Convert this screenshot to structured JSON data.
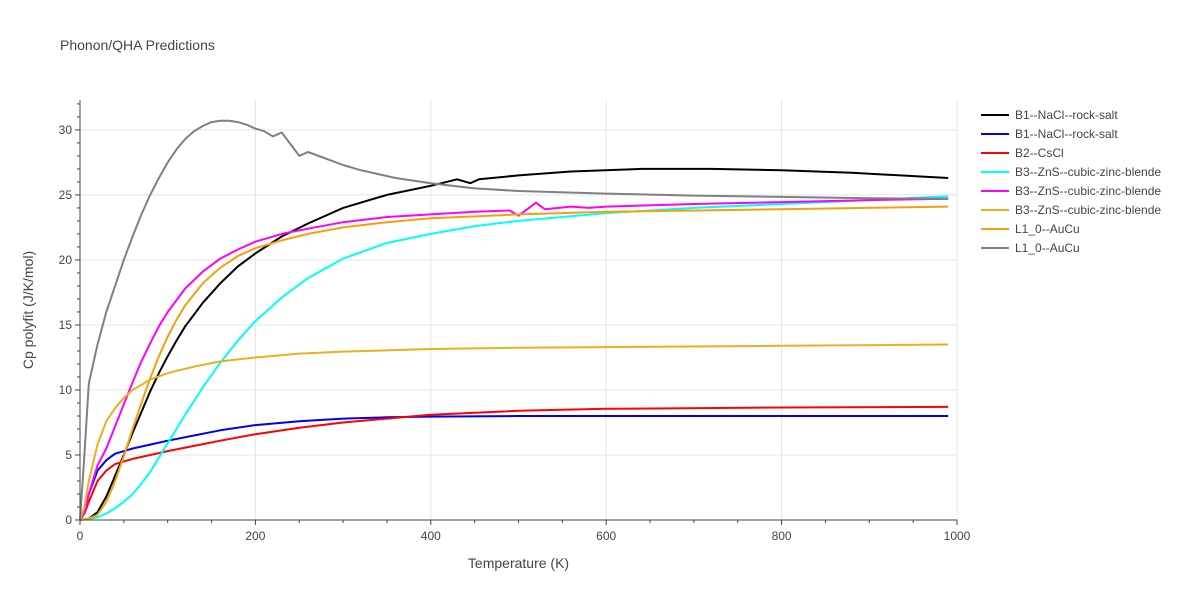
{
  "chart_data": {
    "type": "line",
    "title": "Phonon/QHA Predictions",
    "xlabel": "Temperature (K)",
    "ylabel": "Cp polyfit (J/K/mol)",
    "xlim": [
      0,
      1000
    ],
    "ylim": [
      0,
      32.3
    ],
    "xticks": [
      0,
      200,
      400,
      600,
      800,
      1000
    ],
    "yticks": [
      0,
      5,
      10,
      15,
      20,
      25,
      30
    ],
    "grid": true,
    "legend_position": "top-right",
    "series": [
      {
        "name": "B1--NaCl--rock-salt",
        "color": "#000000",
        "x": [
          0,
          10,
          20,
          30,
          40,
          50,
          60,
          70,
          80,
          90,
          100,
          110,
          120,
          130,
          140,
          160,
          180,
          200,
          230,
          260,
          300,
          350,
          400,
          430,
          445,
          455,
          500,
          560,
          640,
          720,
          800,
          880,
          990
        ],
        "y": [
          0,
          0.1,
          0.6,
          1.8,
          3.4,
          5.0,
          6.7,
          8.3,
          9.9,
          11.3,
          12.6,
          13.8,
          14.9,
          15.8,
          16.7,
          18.2,
          19.5,
          20.5,
          21.8,
          22.8,
          24.0,
          25.0,
          25.7,
          26.2,
          25.9,
          26.2,
          26.5,
          26.8,
          27.0,
          27.0,
          26.9,
          26.7,
          26.3
        ]
      },
      {
        "name": "B1--NaCl--rock-salt",
        "color": "#0000ee",
        "x": [
          0,
          5,
          10,
          20,
          30,
          40,
          60,
          80,
          100,
          130,
          160,
          200,
          250,
          300,
          350,
          400,
          500,
          600,
          800,
          990
        ],
        "y": [
          0,
          0.8,
          2.0,
          3.8,
          4.6,
          5.1,
          5.5,
          5.8,
          6.1,
          6.5,
          6.9,
          7.3,
          7.6,
          7.8,
          7.9,
          7.95,
          8.0,
          8.0,
          8.0,
          8.0
        ]
      },
      {
        "name": "B2--CsCl",
        "color": "#ff0000",
        "x": [
          0,
          5,
          10,
          20,
          30,
          40,
          60,
          80,
          100,
          130,
          160,
          200,
          250,
          300,
          350,
          400,
          500,
          600,
          800,
          990
        ],
        "y": [
          0,
          0.5,
          1.4,
          3.0,
          3.8,
          4.3,
          4.7,
          5.0,
          5.3,
          5.7,
          6.1,
          6.6,
          7.1,
          7.5,
          7.8,
          8.1,
          8.4,
          8.55,
          8.65,
          8.7
        ]
      },
      {
        "name": "B3--ZnS--cubic-zinc-blende",
        "color": "#00ffff",
        "x": [
          0,
          20,
          30,
          40,
          50,
          60,
          70,
          80,
          90,
          100,
          120,
          140,
          160,
          180,
          200,
          230,
          260,
          300,
          350,
          400,
          450,
          500,
          600,
          700,
          800,
          900,
          990
        ],
        "y": [
          0,
          0.2,
          0.5,
          0.9,
          1.4,
          2.0,
          2.8,
          3.7,
          4.8,
          5.9,
          8.1,
          10.2,
          12.1,
          13.8,
          15.3,
          17.1,
          18.6,
          20.1,
          21.3,
          22.0,
          22.6,
          23.0,
          23.6,
          24.0,
          24.3,
          24.6,
          24.9
        ]
      },
      {
        "name": "B3--ZnS--cubic-zinc-blende",
        "color": "#ff00ff",
        "x": [
          0,
          5,
          10,
          20,
          30,
          40,
          50,
          60,
          70,
          80,
          90,
          100,
          120,
          140,
          160,
          180,
          200,
          230,
          260,
          300,
          350,
          400,
          450,
          490,
          500,
          510,
          520,
          530,
          560,
          580,
          600,
          700,
          800,
          900,
          990
        ],
        "y": [
          0,
          0.6,
          2.0,
          4.2,
          5.5,
          7.2,
          8.9,
          10.6,
          12.2,
          13.6,
          14.9,
          16.0,
          17.8,
          19.1,
          20.1,
          20.8,
          21.4,
          22.0,
          22.4,
          22.9,
          23.3,
          23.5,
          23.7,
          23.8,
          23.4,
          23.9,
          24.4,
          23.9,
          24.1,
          24.0,
          24.1,
          24.3,
          24.45,
          24.6,
          24.7
        ]
      },
      {
        "name": "B3--ZnS--cubic-zinc-blende",
        "color": "#ebb01d",
        "x": [
          0,
          5,
          10,
          20,
          30,
          40,
          50,
          60,
          80,
          100,
          130,
          160,
          200,
          250,
          300,
          400,
          500,
          600,
          800,
          990
        ],
        "y": [
          0,
          1.0,
          3.0,
          5.8,
          7.6,
          8.6,
          9.4,
          10.0,
          10.8,
          11.3,
          11.8,
          12.2,
          12.5,
          12.8,
          12.95,
          13.15,
          13.25,
          13.3,
          13.4,
          13.5
        ]
      },
      {
        "name": "L1_0--AuCu",
        "color": "#f5a00a",
        "x": [
          0,
          10,
          20,
          30,
          40,
          50,
          60,
          70,
          80,
          90,
          100,
          110,
          120,
          140,
          160,
          180,
          200,
          230,
          260,
          300,
          350,
          400,
          500,
          600,
          800,
          990
        ],
        "y": [
          0,
          0.1,
          0.4,
          1.4,
          3.0,
          4.9,
          7.0,
          9.0,
          10.9,
          12.6,
          14.1,
          15.4,
          16.5,
          18.2,
          19.4,
          20.3,
          20.9,
          21.5,
          22.0,
          22.5,
          22.9,
          23.2,
          23.5,
          23.7,
          23.9,
          24.1
        ]
      },
      {
        "name": "L1_0--AuCu",
        "color": "#808080",
        "x": [
          0,
          5,
          10,
          20,
          30,
          40,
          50,
          60,
          70,
          80,
          90,
          100,
          110,
          120,
          130,
          140,
          150,
          160,
          170,
          180,
          190,
          200,
          210,
          220,
          230,
          240,
          250,
          260,
          280,
          300,
          320,
          360,
          400,
          450,
          500,
          600,
          700,
          800,
          900,
          990
        ],
        "y": [
          0,
          5.0,
          10.5,
          13.5,
          16.0,
          18.0,
          20.0,
          21.8,
          23.5,
          25.0,
          26.3,
          27.5,
          28.5,
          29.3,
          29.9,
          30.3,
          30.6,
          30.7,
          30.7,
          30.6,
          30.4,
          30.1,
          29.9,
          29.5,
          29.8,
          28.9,
          28.0,
          28.3,
          27.8,
          27.3,
          26.9,
          26.3,
          25.9,
          25.5,
          25.3,
          25.1,
          24.95,
          24.85,
          24.75,
          24.7
        ]
      }
    ]
  }
}
